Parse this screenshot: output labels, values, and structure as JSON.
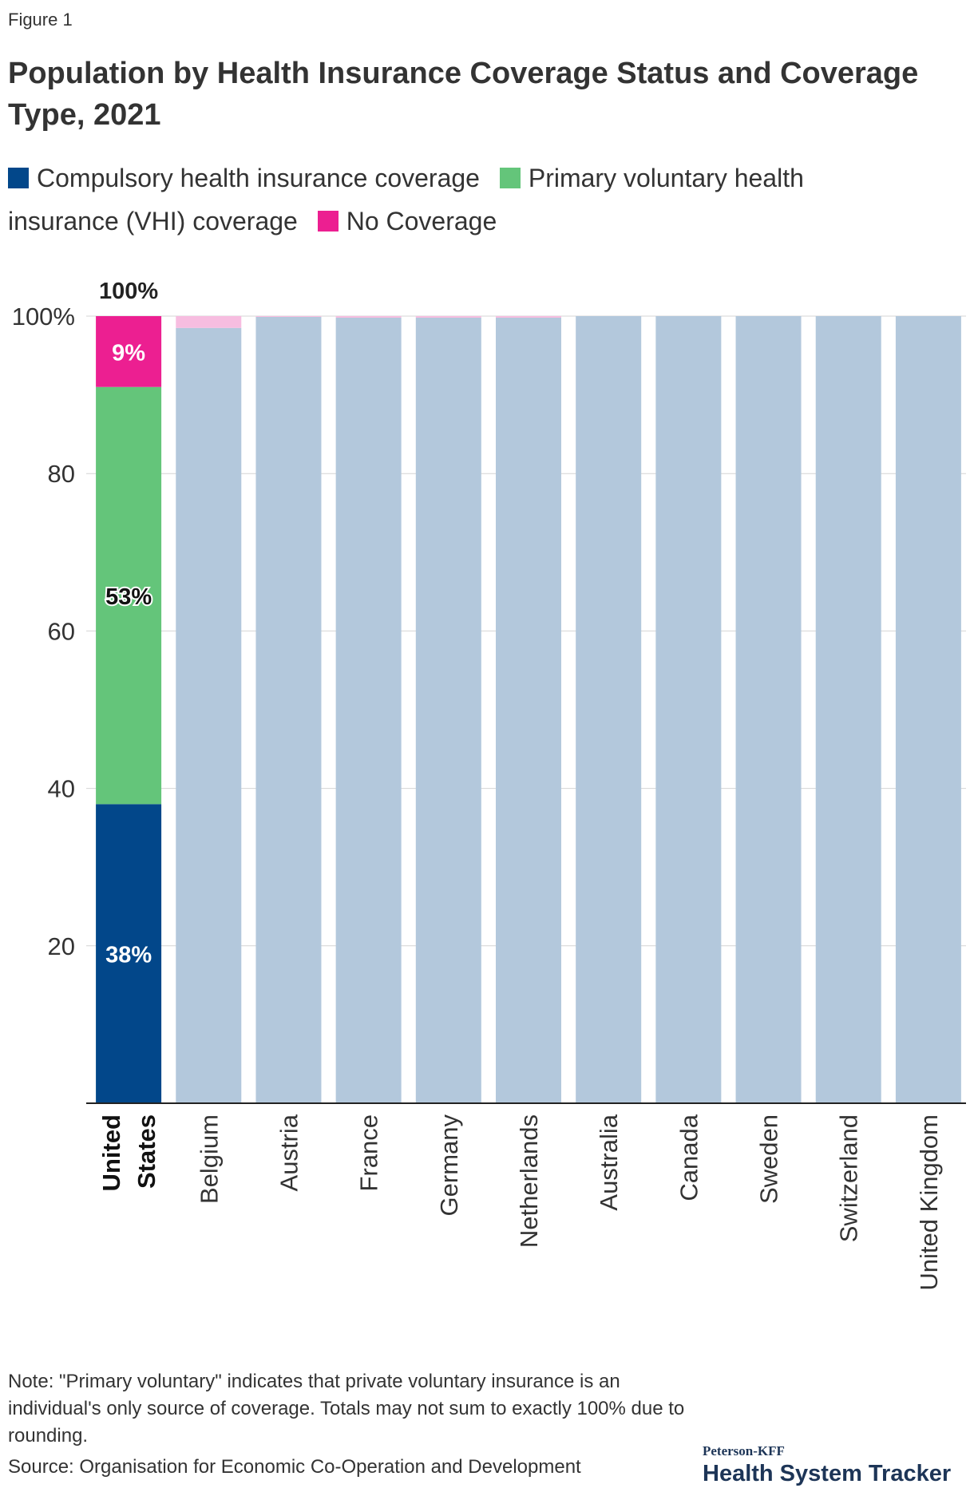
{
  "figure_label": "Figure 1",
  "legend": [
    {
      "label": "Compulsory health insurance coverage",
      "color": "#02478a"
    },
    {
      "label": "Primary voluntary health insurance (VHI) coverage",
      "color": "#64c57a"
    },
    {
      "label": "No Coverage",
      "color": "#ec1f91"
    }
  ],
  "chart_data": {
    "type": "bar",
    "stacked": true,
    "title": "Population by Health Insurance Coverage Status and Coverage Type, 2021",
    "categories": [
      "United States",
      "Belgium",
      "Austria",
      "France",
      "Germany",
      "Netherlands",
      "Australia",
      "Canada",
      "Sweden",
      "Switzerland",
      "United Kingdom"
    ],
    "highlighted_category": "United States",
    "series": [
      {
        "name": "Compulsory health insurance coverage",
        "color": "#02478a",
        "muted_color": "#b3c8dc",
        "values": [
          38,
          98.5,
          99.9,
          99.8,
          99.8,
          99.8,
          100,
          100,
          100,
          100,
          100
        ]
      },
      {
        "name": "Primary voluntary health insurance (VHI) coverage",
        "color": "#64c57a",
        "muted_color": "#b3c8dc",
        "values": [
          53,
          0,
          0,
          0,
          0,
          0,
          0,
          0,
          0,
          0,
          0
        ]
      },
      {
        "name": "No Coverage",
        "color": "#ec1f91",
        "muted_color": "#f7bde0",
        "values": [
          9,
          1.5,
          0.1,
          0.2,
          0.2,
          0.2,
          0,
          0,
          0,
          0,
          0
        ]
      }
    ],
    "data_labels": {
      "United States": [
        "38%",
        "53%",
        "9%"
      ]
    },
    "total_label": "100%",
    "ylim": [
      0,
      100
    ],
    "yticks": [
      20,
      40,
      60,
      80,
      100
    ],
    "ytick_labels": [
      "20",
      "40",
      "60",
      "80",
      "100%"
    ],
    "grid": true,
    "legend_position": "top-left"
  },
  "note": "Note: \"Primary voluntary\" indicates that private voluntary insurance is an individual's only source of coverage. Totals may not sum to exactly 100% due to rounding.",
  "source": "Source: Organisation for Economic Co-Operation and Development",
  "brand": {
    "top": "Peterson-KFF",
    "main": "Health System Tracker"
  }
}
